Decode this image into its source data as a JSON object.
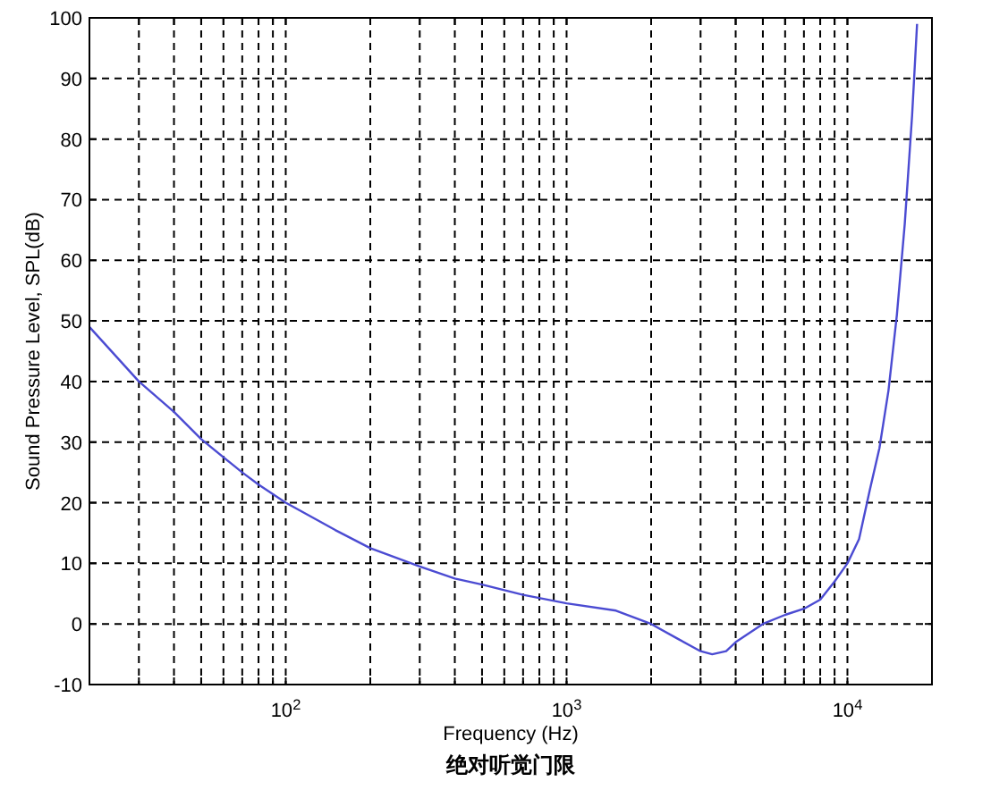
{
  "chart_data": {
    "type": "line",
    "xlabel": "Frequency (Hz)",
    "ylabel": "Sound Pressure Level, SPL(dB)",
    "annotations": [
      "绝对听觉门限"
    ],
    "log": "x",
    "grid": true,
    "line_style": "solid",
    "xlim": [
      20,
      20000
    ],
    "ylim": [
      -10,
      100
    ],
    "xticks": [
      {
        "value": 20,
        "label": null
      },
      {
        "value": 30,
        "label": null
      },
      {
        "value": 40,
        "label": null
      },
      {
        "value": 50,
        "label": null
      },
      {
        "value": 60,
        "label": null
      },
      {
        "value": 70,
        "label": null
      },
      {
        "value": 80,
        "label": null
      },
      {
        "value": 90,
        "label": null
      },
      {
        "value": 100,
        "label": "10$^{2}$"
      },
      {
        "value": 200,
        "label": null
      },
      {
        "value": 300,
        "label": null
      },
      {
        "value": 400,
        "label": null
      },
      {
        "value": 500,
        "label": null
      },
      {
        "value": 600,
        "label": null
      },
      {
        "value": 700,
        "label": null
      },
      {
        "value": 800,
        "label": null
      },
      {
        "value": 900,
        "label": null
      },
      {
        "value": 1000,
        "label": "10$^{3}$"
      },
      {
        "value": 2000,
        "label": null
      },
      {
        "value": 3000,
        "label": null
      },
      {
        "value": 4000,
        "label": null
      },
      {
        "value": 5000,
        "label": null
      },
      {
        "value": 6000,
        "label": null
      },
      {
        "value": 7000,
        "label": null
      },
      {
        "value": 8000,
        "label": null
      },
      {
        "value": 9000,
        "label": null
      },
      {
        "value": 10000,
        "label": "10$^{4}$"
      }
    ],
    "yticks": [
      -10,
      0,
      10,
      20,
      30,
      40,
      50,
      60,
      70,
      80,
      90,
      100
    ],
    "series": [
      {
        "color": "#4b4bd2",
        "x": [
          20,
          30,
          40,
          50,
          60,
          70,
          80,
          100,
          150,
          200,
          300,
          400,
          500,
          700,
          1000,
          1500,
          2000,
          2500,
          3000,
          3300,
          3700,
          4000,
          5000,
          6000,
          7000,
          8000,
          9000,
          10000,
          11000,
          12000,
          13000,
          14000,
          15000,
          16000,
          17000,
          17700
        ],
        "values": [
          49,
          40,
          35,
          30.5,
          27.5,
          25,
          23,
          20,
          15.5,
          12.5,
          9.5,
          7.5,
          6.5,
          4.8,
          3.4,
          2.2,
          0,
          -2.5,
          -4.5,
          -5,
          -4.5,
          -3,
          0,
          1.5,
          2.5,
          4,
          7,
          10,
          14,
          22,
          29,
          38.5,
          51,
          66,
          84,
          99
        ]
      }
    ]
  }
}
